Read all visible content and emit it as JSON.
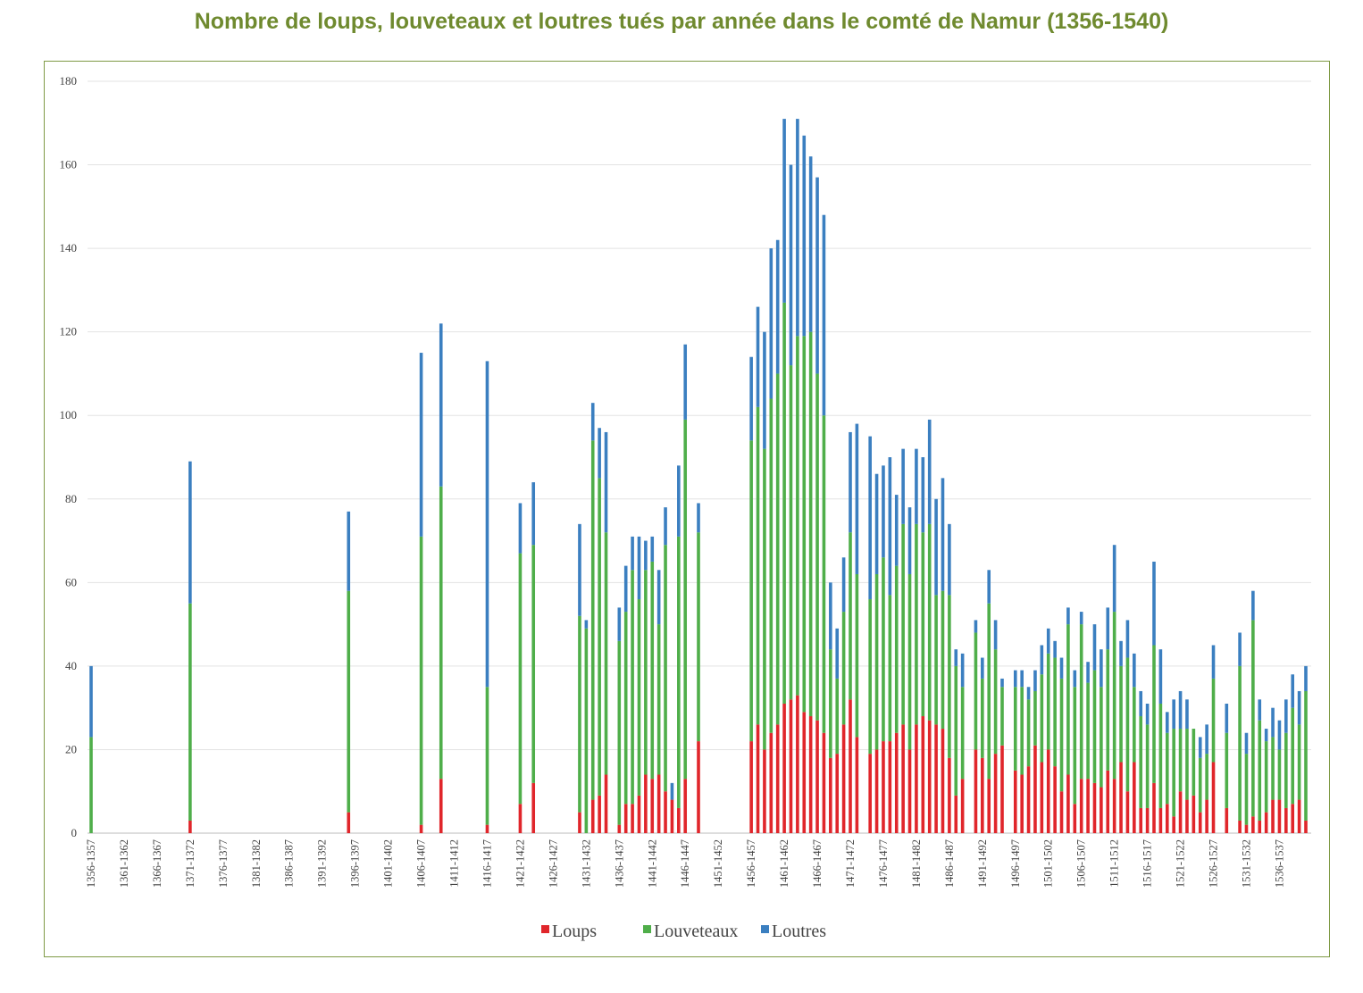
{
  "chart_data": {
    "type": "bar",
    "stacked": true,
    "title": "Nombre de loups, louveteaux et loutres tués par année dans le comté de Namur (1356-1540)",
    "xlabel": "",
    "ylabel": "",
    "ylim": [
      0,
      180
    ],
    "yticks": [
      0,
      20,
      40,
      60,
      80,
      100,
      120,
      140,
      160,
      180
    ],
    "grid": true,
    "legend_position": "bottom",
    "xlim": [
      1356,
      1540
    ],
    "tick_labels": [
      "1356-1357",
      "1361-1362",
      "1366-1367",
      "1371-1372",
      "1376-1377",
      "1381-1382",
      "1386-1387",
      "1391-1392",
      "1396-1397",
      "1401-1402",
      "1406-1407",
      "1411-1412",
      "1416-1417",
      "1421-1422",
      "1426-1427",
      "1431-1432",
      "1436-1437",
      "1441-1442",
      "1446-1447",
      "1451-1452",
      "1456-1457",
      "1461-1462",
      "1466-1467",
      "1471-1472",
      "1476-1477",
      "1481-1482",
      "1486-1487",
      "1491-1492",
      "1496-1497",
      "1501-1502",
      "1506-1507",
      "1511-1512",
      "1516-1517",
      "1521-1522",
      "1526-1527",
      "1531-1532",
      "1536-1537"
    ],
    "series": [
      {
        "name": "Loups",
        "color": "#e0262b",
        "values": [
          0,
          0,
          0,
          0,
          0,
          0,
          0,
          0,
          0,
          0,
          0,
          0,
          0,
          0,
          0,
          3,
          0,
          0,
          0,
          0,
          0,
          0,
          0,
          0,
          0,
          0,
          0,
          0,
          0,
          0,
          0,
          0,
          0,
          0,
          0,
          0,
          0,
          0,
          0,
          5,
          0,
          0,
          0,
          0,
          0,
          0,
          0,
          0,
          0,
          0,
          2,
          0,
          0,
          13,
          0,
          0,
          0,
          0,
          0,
          0,
          2,
          0,
          0,
          0,
          0,
          7,
          0,
          12,
          0,
          0,
          0,
          0,
          0,
          0,
          5,
          0,
          8,
          9,
          14,
          0,
          2,
          7,
          7,
          9,
          14,
          13,
          14,
          10,
          8,
          6,
          13,
          0,
          22,
          0,
          0,
          0,
          0,
          0,
          0,
          0,
          22,
          26,
          20,
          24,
          26,
          31,
          32,
          33,
          29,
          28,
          27,
          24,
          18,
          19,
          26,
          32,
          23,
          0,
          19,
          20,
          22,
          22,
          24,
          26,
          20,
          26,
          28,
          27,
          26,
          25,
          18,
          9,
          13,
          0,
          20,
          18,
          13,
          19,
          21,
          0,
          15,
          14,
          16,
          21,
          17,
          20,
          16,
          10,
          14,
          7,
          13,
          13,
          12,
          11,
          15,
          13,
          17,
          10,
          17,
          6,
          6,
          12,
          6,
          7,
          4,
          10,
          8,
          9,
          5,
          8,
          17,
          0,
          6,
          0,
          3,
          2,
          4,
          3,
          5,
          8,
          8,
          6,
          7,
          8,
          3
        ]
      },
      {
        "name": "Louveteaux",
        "color": "#4fae4a",
        "values": [
          23,
          0,
          0,
          0,
          0,
          0,
          0,
          0,
          0,
          0,
          0,
          0,
          0,
          0,
          0,
          52,
          0,
          0,
          0,
          0,
          0,
          0,
          0,
          0,
          0,
          0,
          0,
          0,
          0,
          0,
          0,
          0,
          0,
          0,
          0,
          0,
          0,
          0,
          0,
          53,
          0,
          0,
          0,
          0,
          0,
          0,
          0,
          0,
          0,
          0,
          69,
          0,
          0,
          70,
          0,
          0,
          0,
          0,
          0,
          0,
          33,
          0,
          0,
          0,
          0,
          60,
          0,
          57,
          0,
          0,
          0,
          0,
          0,
          0,
          47,
          49,
          86,
          76,
          58,
          0,
          44,
          46,
          56,
          47,
          49,
          52,
          36,
          59,
          0,
          65,
          86,
          0,
          50,
          0,
          0,
          0,
          0,
          0,
          0,
          0,
          72,
          76,
          72,
          80,
          84,
          96,
          80,
          86,
          90,
          92,
          83,
          76,
          26,
          18,
          27,
          40,
          39,
          0,
          37,
          42,
          44,
          35,
          40,
          48,
          42,
          48,
          44,
          47,
          31,
          33,
          39,
          31,
          22,
          0,
          28,
          19,
          42,
          25,
          14,
          0,
          20,
          21,
          16,
          13,
          21,
          23,
          26,
          27,
          36,
          28,
          37,
          23,
          27,
          24,
          29,
          40,
          23,
          32,
          18,
          22,
          20,
          33,
          25,
          17,
          21,
          15,
          17,
          16,
          13,
          11,
          20,
          0,
          18,
          0,
          37,
          17,
          47,
          24,
          17,
          15,
          12,
          18,
          23,
          18,
          31
        ]
      },
      {
        "name": "Loutres",
        "color": "#3b7fc0",
        "values": [
          17,
          0,
          0,
          0,
          0,
          0,
          0,
          0,
          0,
          0,
          0,
          0,
          0,
          0,
          0,
          34,
          0,
          0,
          0,
          0,
          0,
          0,
          0,
          0,
          0,
          0,
          0,
          0,
          0,
          0,
          0,
          0,
          0,
          0,
          0,
          0,
          0,
          0,
          0,
          19,
          0,
          0,
          0,
          0,
          0,
          0,
          0,
          0,
          0,
          0,
          44,
          0,
          0,
          39,
          0,
          0,
          0,
          0,
          0,
          0,
          78,
          0,
          0,
          0,
          0,
          12,
          0,
          15,
          0,
          0,
          0,
          0,
          0,
          0,
          22,
          2,
          9,
          12,
          24,
          0,
          8,
          11,
          8,
          15,
          7,
          6,
          13,
          9,
          4,
          17,
          18,
          0,
          7,
          0,
          0,
          0,
          0,
          0,
          0,
          0,
          20,
          24,
          28,
          36,
          32,
          44,
          48,
          52,
          48,
          42,
          47,
          48,
          16,
          12,
          13,
          24,
          36,
          0,
          39,
          24,
          22,
          33,
          17,
          18,
          16,
          18,
          18,
          25,
          23,
          27,
          17,
          4,
          8,
          0,
          3,
          5,
          8,
          7,
          2,
          0,
          4,
          4,
          3,
          5,
          7,
          6,
          4,
          5,
          4,
          4,
          3,
          5,
          11,
          9,
          10,
          16,
          6,
          9,
          8,
          6,
          5,
          20,
          13,
          5,
          7,
          9,
          7,
          0,
          5,
          7,
          8,
          0,
          7,
          0,
          8,
          5,
          7,
          5,
          3,
          7,
          7,
          8,
          8,
          8,
          6
        ]
      }
    ]
  }
}
